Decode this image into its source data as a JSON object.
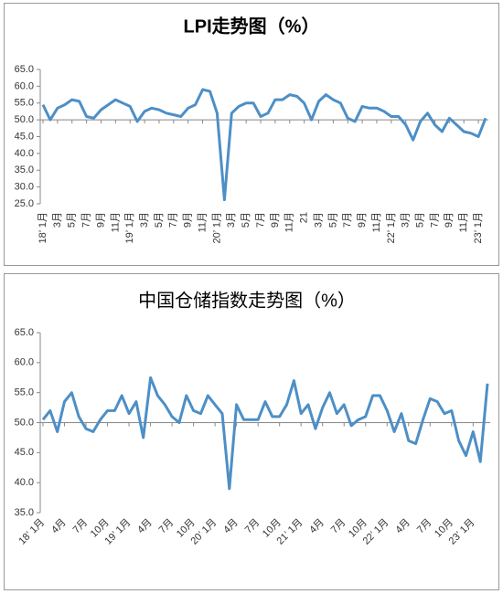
{
  "chart_data": [
    {
      "type": "line",
      "title": "LPI走势图（%）",
      "categories": [
        "18’ 1月",
        null,
        "3月",
        null,
        "5月",
        null,
        "7月",
        null,
        "9月",
        null,
        "11月",
        null,
        "19’ 1月",
        null,
        "3月",
        null,
        "5月",
        null,
        "7月",
        null,
        "9月",
        null,
        "11月",
        null,
        "20’ 1月",
        null,
        "3月",
        null,
        "5月",
        null,
        "7月",
        null,
        "9月",
        null,
        "11月",
        null,
        "21",
        null,
        "3月",
        null,
        "5月",
        null,
        "7月",
        null,
        "9月",
        null,
        "11月",
        null,
        "22’ 1月",
        null,
        "3月",
        null,
        "5月",
        null,
        "7月",
        null,
        "9月",
        null,
        "11月",
        null,
        "23’ 1月",
        null
      ],
      "values": [
        54.5,
        50,
        53.5,
        54.5,
        56,
        55.5,
        51,
        50.5,
        53,
        54.5,
        56,
        55,
        54,
        49.5,
        52.5,
        53.5,
        53,
        52,
        51.5,
        51,
        53.5,
        54.5,
        59,
        58.5,
        52,
        26.2,
        52,
        54,
        55,
        55,
        51,
        52,
        56,
        56,
        57.5,
        57,
        55,
        50,
        55.5,
        57.5,
        56,
        55,
        50.5,
        49.5,
        54,
        53.5,
        53.5,
        52.5,
        51,
        51,
        48.5,
        44,
        49.5,
        52,
        48.5,
        46.5,
        50.5,
        48.5,
        46.5,
        46,
        45,
        50.5
      ],
      "color": "#4d8fc6",
      "ylim": [
        25,
        65
      ],
      "yticks": [
        {
          "value": 25,
          "label": "25.0"
        },
        {
          "value": 30,
          "label": "30.0"
        },
        {
          "value": 35,
          "label": "35.0"
        },
        {
          "value": 40,
          "label": "40.0"
        },
        {
          "value": 45,
          "label": "45.0"
        },
        {
          "value": 50,
          "label": "50.0"
        },
        {
          "value": 55,
          "label": "55.0"
        },
        {
          "value": 60,
          "label": "60.0"
        },
        {
          "value": 65,
          "label": "65.0"
        }
      ],
      "x_axis_crosses_at": 50
    },
    {
      "type": "line",
      "title": "中国仓储指数走势图（%）",
      "categories": [
        "18’ 1月",
        null,
        null,
        "4月",
        null,
        null,
        "7月",
        null,
        null,
        "10月",
        null,
        null,
        "19’ 1月",
        null,
        null,
        "4月",
        null,
        null,
        "7月",
        null,
        null,
        "10月",
        null,
        null,
        "20’ 1月",
        null,
        null,
        "4月",
        null,
        null,
        "7月",
        null,
        null,
        "10月",
        null,
        null,
        "21’ 1月",
        null,
        null,
        "4月",
        null,
        null,
        "7月",
        null,
        null,
        "10月",
        null,
        null,
        "22’ 1月",
        null,
        null,
        "4月",
        null,
        null,
        "7月",
        null,
        null,
        "10月",
        null,
        null,
        "23’ 1月",
        null,
        null
      ],
      "values": [
        50.5,
        52,
        48.5,
        53.5,
        55,
        51,
        49,
        48.5,
        50.5,
        52,
        52,
        54.5,
        51.5,
        53.5,
        47.5,
        57.5,
        54.5,
        53,
        51,
        50,
        54.5,
        52,
        51.5,
        54.5,
        53,
        51.5,
        39,
        53,
        50.5,
        50.5,
        50.5,
        53.5,
        51,
        51,
        53,
        57,
        51.5,
        53,
        49,
        52.5,
        55,
        51.5,
        53,
        49.5,
        50.5,
        51,
        54.5,
        54.5,
        52,
        48.5,
        51.5,
        47,
        46.5,
        50.5,
        54,
        53.5,
        51.5,
        52,
        47,
        44.5,
        48.5,
        43.5,
        56.5
      ],
      "color": "#4d8fc6",
      "ylim": [
        35,
        65
      ],
      "yticks": [
        {
          "value": 35,
          "label": "35.0"
        },
        {
          "value": 40,
          "label": "40.0"
        },
        {
          "value": 45,
          "label": "45.0"
        },
        {
          "value": 50,
          "label": "50.0"
        },
        {
          "value": 55,
          "label": "55.0"
        },
        {
          "value": 60,
          "label": "60.0"
        },
        {
          "value": 65,
          "label": "65.0"
        }
      ],
      "x_axis_crosses_at": 50
    }
  ]
}
